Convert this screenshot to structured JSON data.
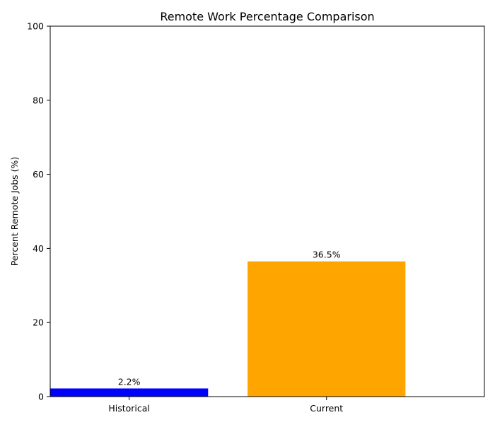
{
  "chart_data": {
    "type": "bar",
    "title": "Remote Work Percentage Comparison",
    "xlabel": "",
    "ylabel": "Percent Remote Jobs (%)",
    "categories": [
      "Historical",
      "Current"
    ],
    "values": [
      2.2,
      36.5
    ],
    "data_labels": [
      "2.2%",
      "36.5%"
    ],
    "colors": [
      "#0000ff",
      "#ffa500"
    ],
    "ylim": [
      0,
      100
    ],
    "yticks": [
      0,
      20,
      40,
      60,
      80,
      100
    ],
    "ytick_labels": [
      "0",
      "20",
      "40",
      "60",
      "80",
      "100"
    ],
    "grid": false,
    "legend": "none"
  }
}
